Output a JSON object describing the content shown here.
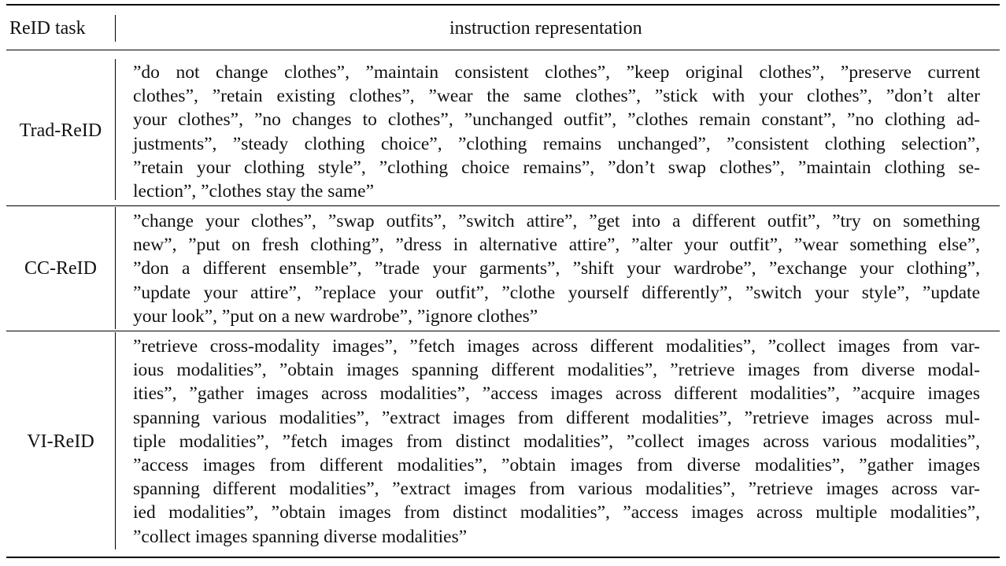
{
  "header": {
    "task_col": "ReID task",
    "instr_col": "instruction representation"
  },
  "rows": [
    {
      "task": "Trad-ReID",
      "lines": [
        "”do not change clothes”, ”maintain consistent clothes”, ”keep original clothes”, ”preserve current",
        "clothes”, ”retain existing clothes”, ”wear the same clothes”, ”stick with your clothes”, ”don’t alter",
        "your clothes”, ”no changes to clothes”, ”unchanged outfit”, ”clothes remain constant”, ”no clothing ad-",
        "justments”, ”steady clothing choice”, ”clothing remains unchanged”, ”consistent clothing selection”,",
        "”retain your clothing style”, ”clothing choice remains”, ”don’t swap clothes”, ”maintain clothing se-",
        "lection”, ”clothes stay the same”"
      ]
    },
    {
      "task": "CC-ReID",
      "lines": [
        "”change your clothes”, ”swap outfits”, ”switch attire”, ”get into a different outfit”, ”try on something",
        "new”, ”put on fresh clothing”, ”dress in alternative attire”, ”alter your outfit”, ”wear something else”,",
        "”don a different ensemble”, ”trade your garments”, ”shift your wardrobe”, ”exchange your clothing”,",
        "”update your attire”, ”replace your outfit”, ”clothe yourself differently”, ”switch your style”, ”update",
        "your look”, ”put on a new wardrobe”, ”ignore clothes”"
      ]
    },
    {
      "task": "VI-ReID",
      "lines": [
        "”retrieve cross-modality images”, ”fetch images across different modalities”, ”collect images from var-",
        "ious modalities”, ”obtain images spanning different modalities”, ”retrieve images from diverse modal-",
        "ities”, ”gather images across modalities”, ”access images across different modalities”, ”acquire images",
        "spanning various modalities”, ”extract images from different modalities”, ”retrieve images across mul-",
        "tiple modalities”, ”fetch images from distinct modalities”, ”collect images across various modalities”,",
        "”access images from different modalities”, ”obtain images from diverse modalities”, ”gather images",
        "spanning different modalities”, ”extract images from various modalities”, ”retrieve images across var-",
        "ied modalities”, ”obtain images from distinct modalities”, ”access images across multiple modalities”,",
        "”collect images spanning diverse modalities”"
      ]
    }
  ]
}
